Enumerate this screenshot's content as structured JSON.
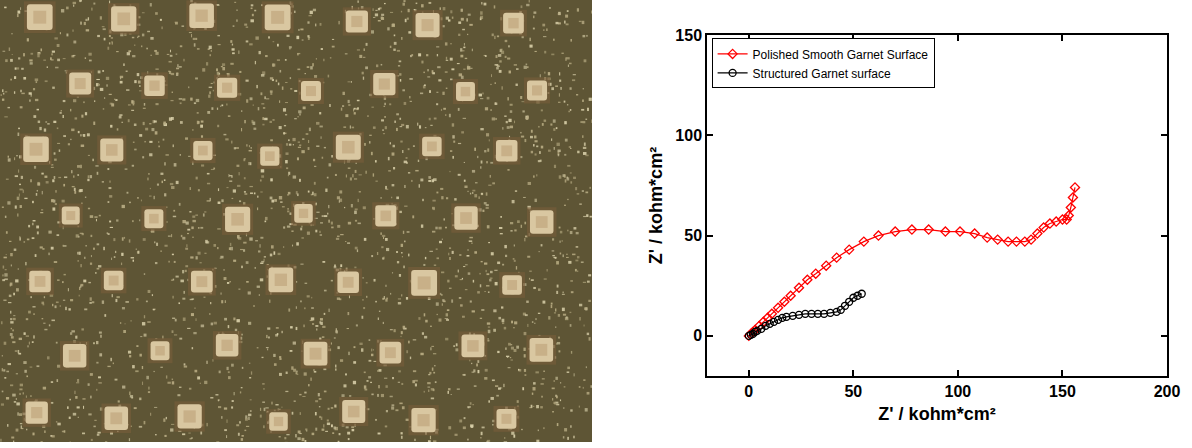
{
  "chart_data": {
    "type": "scatter",
    "x_label": "Z' / kohm*cm²",
    "y_label": "Z' / kohm*cm²",
    "xlim": [
      -20,
      200
    ],
    "xticks": [
      0,
      50,
      100,
      150,
      200
    ],
    "ylim": [
      -20,
      150
    ],
    "yticks": [
      0,
      50,
      100,
      150
    ],
    "grid": false,
    "legend": "upper left",
    "series": [
      {
        "name": "Polished Smooth Garnet Surface",
        "color": "#ff0000",
        "marker": "diamond-open",
        "line_style": "solid",
        "x": [
          0,
          1,
          2,
          3,
          5,
          7,
          9,
          11,
          14,
          17,
          20,
          24,
          28,
          32,
          37,
          42,
          48,
          55,
          62,
          70,
          78,
          86,
          94,
          101,
          108,
          114,
          119,
          124,
          128,
          132,
          135,
          138,
          141,
          144,
          147,
          150,
          152,
          153,
          154,
          155,
          156
        ],
        "y": [
          0,
          1,
          2,
          3,
          5,
          7,
          9,
          11,
          14,
          17,
          20,
          24,
          28,
          31,
          35,
          39,
          43,
          47,
          50,
          52,
          53,
          53,
          52,
          52,
          51,
          49,
          48,
          47,
          47,
          47,
          48,
          51,
          54,
          56,
          57,
          58,
          58,
          60,
          64,
          69,
          74
        ]
      },
      {
        "name": "Structured Garnet surface",
        "color": "#000000",
        "marker": "circle-open",
        "line_style": "solid",
        "x": [
          0,
          1,
          2,
          3,
          4,
          6,
          8,
          10,
          12,
          14,
          16,
          18,
          21,
          24,
          27,
          30,
          33,
          36,
          39,
          42,
          44,
          46,
          48,
          50,
          52,
          54
        ],
        "y": [
          0,
          0.5,
          1,
          2,
          2.5,
          3.5,
          5,
          6,
          7,
          8,
          9,
          9.5,
          10,
          10.5,
          11,
          11,
          11,
          11,
          11.5,
          12,
          13,
          15,
          17,
          19,
          20,
          21
        ]
      }
    ]
  }
}
